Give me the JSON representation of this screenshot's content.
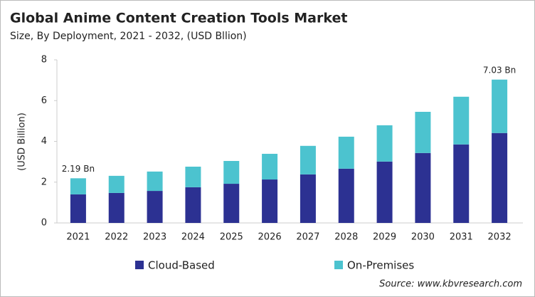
{
  "chart_data": {
    "type": "stacked-bar",
    "title": "Global Anime Content Creation Tools Market",
    "subtitle": "Size, By Deployment, 2021 - 2032, (USD Bllion)",
    "y_label": "(USD Billion)",
    "categories": [
      "2021",
      "2022",
      "2023",
      "2024",
      "2025",
      "2026",
      "2027",
      "2028",
      "2029",
      "2030",
      "2031",
      "2032"
    ],
    "series": [
      {
        "name": "Cloud-Based",
        "color": "#2c3192",
        "values": [
          1.4,
          1.47,
          1.57,
          1.75,
          1.92,
          2.13,
          2.38,
          2.66,
          3.01,
          3.43,
          3.85,
          4.41
        ]
      },
      {
        "name": "On-Premises",
        "color": "#4cc3cf",
        "values": [
          0.79,
          0.84,
          0.95,
          1.01,
          1.12,
          1.26,
          1.4,
          1.57,
          1.78,
          2.02,
          2.34,
          2.62
        ]
      }
    ],
    "annotations": [
      "2.19 Bn",
      "7.03 Bn"
    ],
    "ylim": [
      0,
      8
    ],
    "yticks": [
      0,
      2,
      4,
      6,
      8
    ],
    "source": "Source: www.kbvresearch.com"
  }
}
